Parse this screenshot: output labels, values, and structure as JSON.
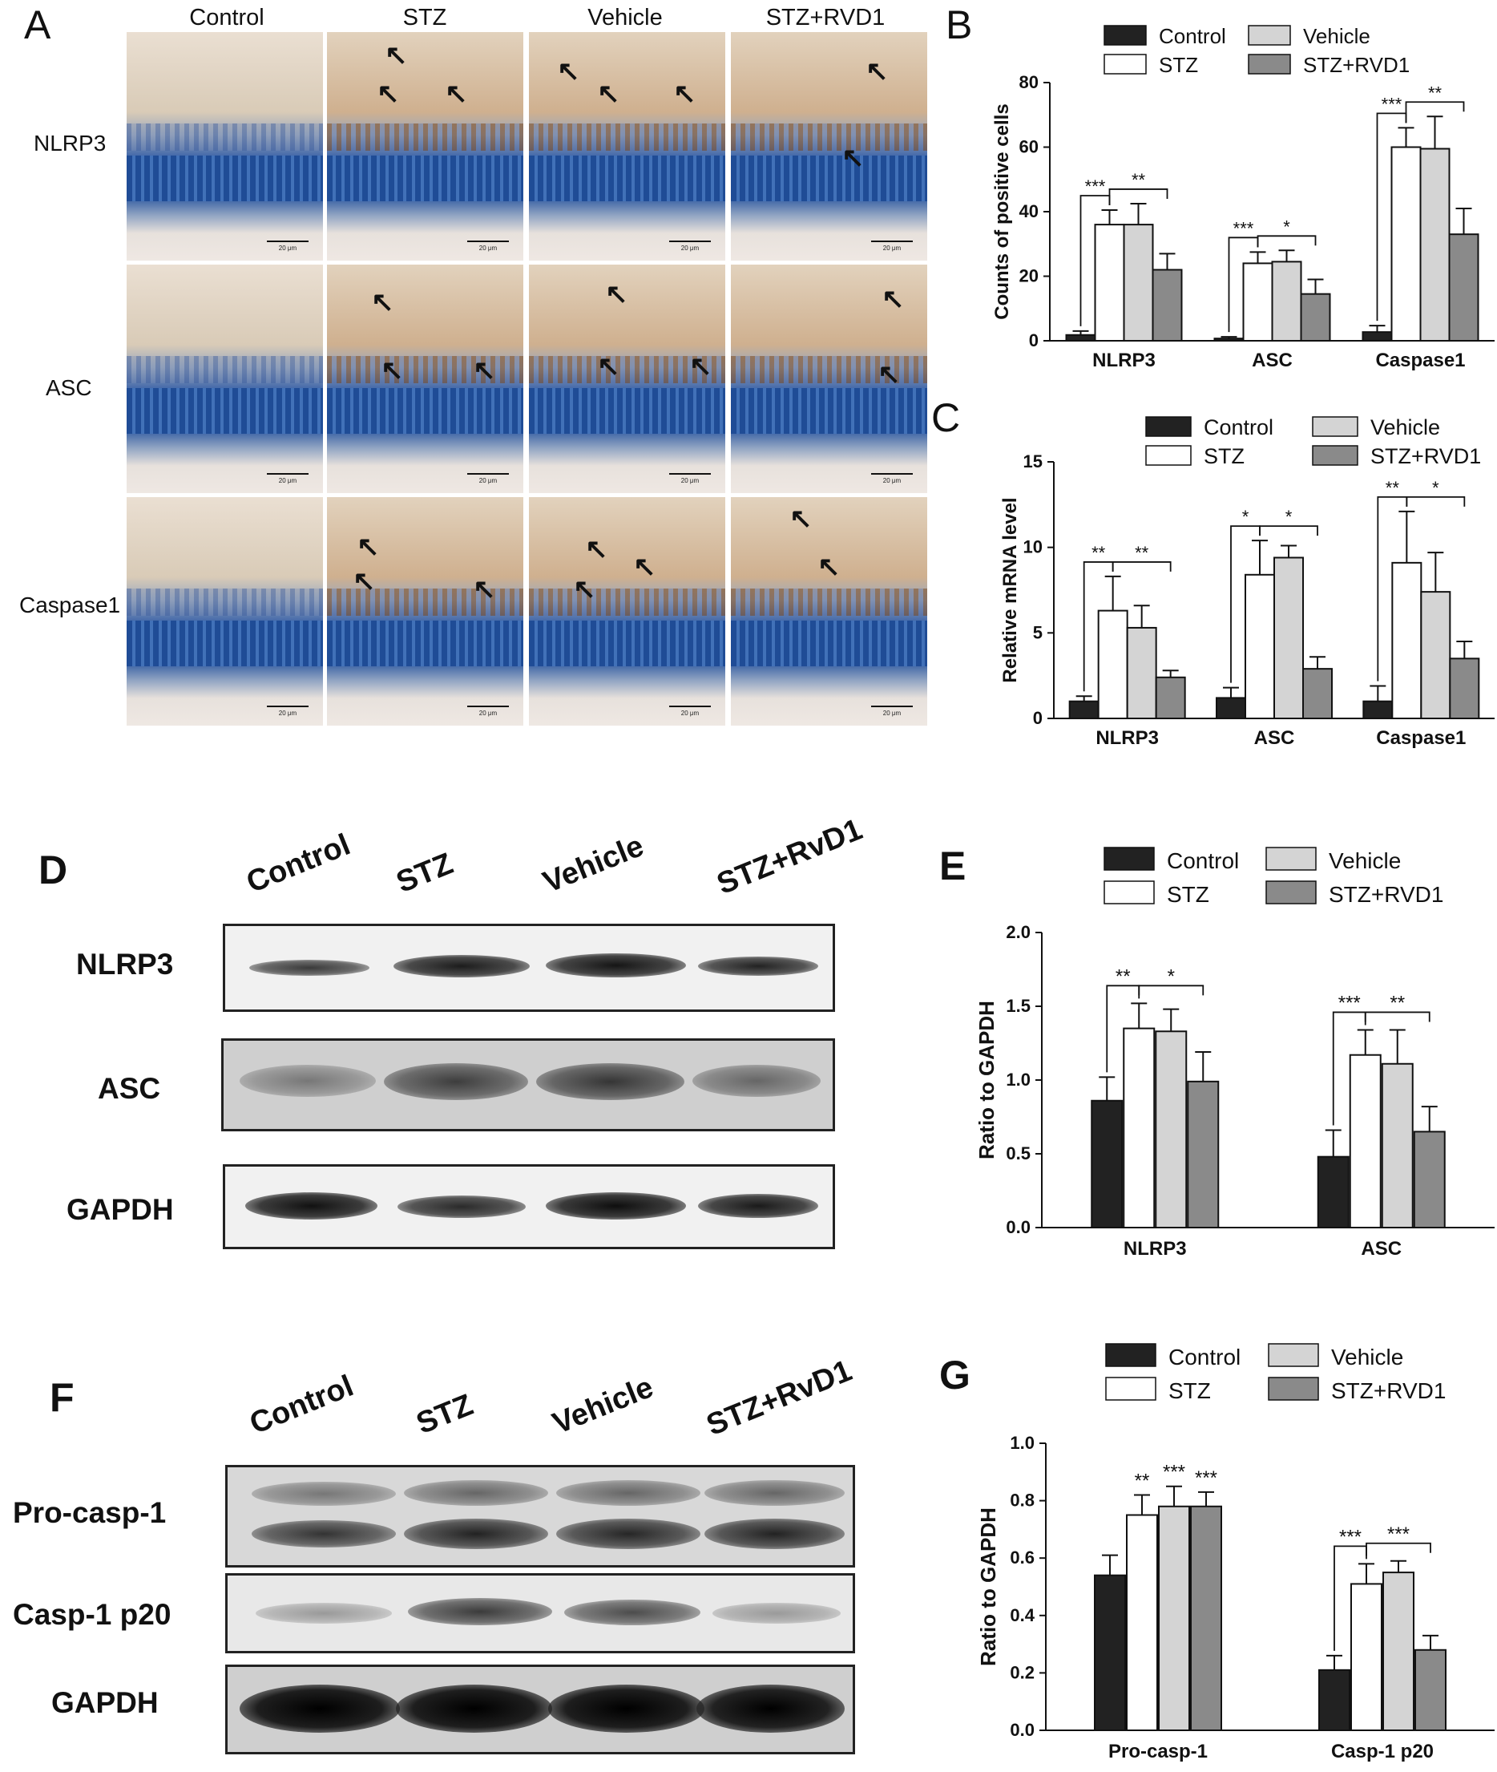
{
  "panelA": {
    "label": "A",
    "columns": [
      "Control",
      "STZ",
      "Vehicle",
      "STZ+RVD1"
    ],
    "rows": [
      "NLRP3",
      "ASC",
      "Caspase1"
    ],
    "scale": "20 μm"
  },
  "panelD": {
    "label": "D",
    "lanes": [
      "Control",
      "STZ",
      "Vehicle",
      "STZ+RvD1"
    ],
    "rows": [
      "NLRP3",
      "ASC",
      "GAPDH"
    ]
  },
  "panelF": {
    "label": "F",
    "lanes": [
      "Control",
      "STZ",
      "Vehicle",
      "STZ+RvD1"
    ],
    "rows": [
      "Pro-casp-1",
      "Casp-1 p20",
      "GAPDH"
    ]
  },
  "colors": {
    "Control": "#222222",
    "STZ": "#ffffff",
    "Vehicle": "#d4d4d4",
    "STZ+RVD1": "#8a8a8a"
  },
  "chart_data": [
    {
      "panel": "B",
      "type": "bar",
      "ylabel": "Counts of positive cells",
      "ylim": [
        0,
        80
      ],
      "yticks": [
        0,
        20,
        40,
        60,
        80
      ],
      "categories": [
        "NLRP3",
        "ASC",
        "Caspase1"
      ],
      "series": [
        {
          "name": "Control",
          "values": [
            1.8,
            0.7,
            2.7
          ],
          "errors": [
            1.2,
            0.5,
            2.0
          ]
        },
        {
          "name": "STZ",
          "values": [
            36,
            24,
            60
          ],
          "errors": [
            4.5,
            3.5,
            6
          ]
        },
        {
          "name": "Vehicle",
          "values": [
            36,
            24.5,
            59.5
          ],
          "errors": [
            6.5,
            3.5,
            10
          ]
        },
        {
          "name": "STZ+RVD1",
          "values": [
            22,
            14.5,
            33
          ],
          "errors": [
            5,
            4.5,
            8
          ]
        }
      ],
      "significance": [
        {
          "category": "NLRP3",
          "from": "Control",
          "to": "STZ",
          "text": "***"
        },
        {
          "category": "NLRP3",
          "from": "STZ",
          "to": "STZ+RVD1",
          "text": "**"
        },
        {
          "category": "ASC",
          "from": "Control",
          "to": "STZ",
          "text": "***"
        },
        {
          "category": "ASC",
          "from": "STZ",
          "to": "STZ+RVD1",
          "text": "*"
        },
        {
          "category": "Caspase1",
          "from": "Control",
          "to": "STZ",
          "text": "***"
        },
        {
          "category": "Caspase1",
          "from": "STZ",
          "to": "STZ+RVD1",
          "text": "**"
        }
      ]
    },
    {
      "panel": "C",
      "type": "bar",
      "ylabel": "Relative mRNA level",
      "ylim": [
        0,
        15
      ],
      "yticks": [
        0,
        5,
        10,
        15
      ],
      "categories": [
        "NLRP3",
        "ASC",
        "Caspase1"
      ],
      "series": [
        {
          "name": "Control",
          "values": [
            1.0,
            1.2,
            1.0
          ],
          "errors": [
            0.3,
            0.6,
            0.9
          ]
        },
        {
          "name": "STZ",
          "values": [
            6.3,
            8.4,
            9.1
          ],
          "errors": [
            2.0,
            2.0,
            3.0
          ]
        },
        {
          "name": "Vehicle",
          "values": [
            5.3,
            9.4,
            7.4
          ],
          "errors": [
            1.3,
            0.7,
            2.3
          ]
        },
        {
          "name": "STZ+RVD1",
          "values": [
            2.4,
            2.9,
            3.5
          ],
          "errors": [
            0.4,
            0.7,
            1.0
          ]
        }
      ],
      "significance": [
        {
          "category": "NLRP3",
          "from": "Control",
          "to": "STZ",
          "text": "**"
        },
        {
          "category": "NLRP3",
          "from": "STZ",
          "to": "STZ+RVD1",
          "text": "**"
        },
        {
          "category": "ASC",
          "from": "Control",
          "to": "STZ",
          "text": "*"
        },
        {
          "category": "ASC",
          "from": "STZ",
          "to": "STZ+RVD1",
          "text": "*"
        },
        {
          "category": "Caspase1",
          "from": "Control",
          "to": "STZ",
          "text": "**"
        },
        {
          "category": "Caspase1",
          "from": "STZ",
          "to": "STZ+RVD1",
          "text": "*"
        }
      ]
    },
    {
      "panel": "E",
      "type": "bar",
      "ylabel": "Ratio to GAPDH",
      "ylim": [
        0,
        2.0
      ],
      "yticks": [
        "0.0",
        "0.5",
        "1.0",
        "1.5",
        "2.0"
      ],
      "categories": [
        "NLRP3",
        "ASC"
      ],
      "series": [
        {
          "name": "Control",
          "values": [
            0.86,
            0.48
          ],
          "errors": [
            0.16,
            0.18
          ]
        },
        {
          "name": "STZ",
          "values": [
            1.35,
            1.17
          ],
          "errors": [
            0.17,
            0.17
          ]
        },
        {
          "name": "Vehicle",
          "values": [
            1.33,
            1.11
          ],
          "errors": [
            0.15,
            0.23
          ]
        },
        {
          "name": "STZ+RVD1",
          "values": [
            0.99,
            0.65
          ],
          "errors": [
            0.2,
            0.17
          ]
        }
      ],
      "significance": [
        {
          "category": "NLRP3",
          "from": "Control",
          "to": "STZ",
          "text": "**"
        },
        {
          "category": "NLRP3",
          "from": "STZ",
          "to": "STZ+RVD1",
          "text": "*"
        },
        {
          "category": "ASC",
          "from": "Control",
          "to": "STZ",
          "text": "***"
        },
        {
          "category": "ASC",
          "from": "STZ",
          "to": "STZ+RVD1",
          "text": "**"
        }
      ]
    },
    {
      "panel": "G",
      "type": "bar",
      "ylabel": "Ratio to GAPDH",
      "ylim": [
        0,
        1.0
      ],
      "yticks": [
        "0.0",
        "0.2",
        "0.4",
        "0.6",
        "0.8",
        "1.0"
      ],
      "categories": [
        "Pro-casp-1",
        "Casp-1 p20"
      ],
      "series": [
        {
          "name": "Control",
          "values": [
            0.54,
            0.21
          ],
          "errors": [
            0.07,
            0.05
          ]
        },
        {
          "name": "STZ",
          "values": [
            0.75,
            0.51
          ],
          "errors": [
            0.07,
            0.07
          ]
        },
        {
          "name": "Vehicle",
          "values": [
            0.78,
            0.55
          ],
          "errors": [
            0.07,
            0.04
          ]
        },
        {
          "name": "STZ+RVD1",
          "values": [
            0.78,
            0.28
          ],
          "errors": [
            0.05,
            0.05
          ]
        }
      ],
      "above": [
        {
          "category": "Pro-casp-1",
          "series": "STZ",
          "text": "**"
        },
        {
          "category": "Pro-casp-1",
          "series": "Vehicle",
          "text": "***"
        },
        {
          "category": "Pro-casp-1",
          "series": "STZ+RVD1",
          "text": "***"
        }
      ],
      "significance": [
        {
          "category": "Casp-1 p20",
          "from": "Control",
          "to": "STZ",
          "text": "***"
        },
        {
          "category": "Casp-1 p20",
          "from": "STZ",
          "to": "STZ+RVD1",
          "text": "***"
        }
      ]
    }
  ]
}
